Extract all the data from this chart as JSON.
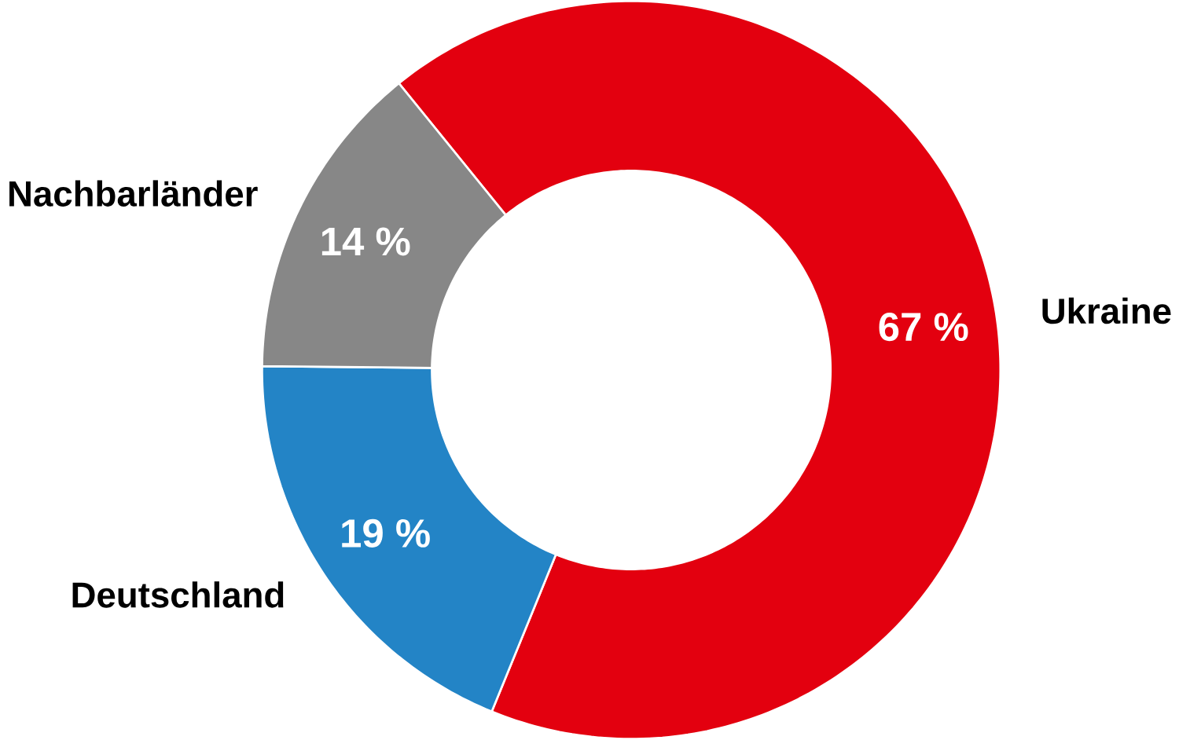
{
  "chart_data": {
    "type": "donut",
    "categories": [
      "Ukraine",
      "Deutschland",
      "Nachbarländer"
    ],
    "values": [
      67,
      19,
      14
    ],
    "colors": [
      "#e3000f",
      "#2384c6",
      "#878787"
    ],
    "value_labels": [
      "67 %",
      "19 %",
      "14 %"
    ]
  }
}
